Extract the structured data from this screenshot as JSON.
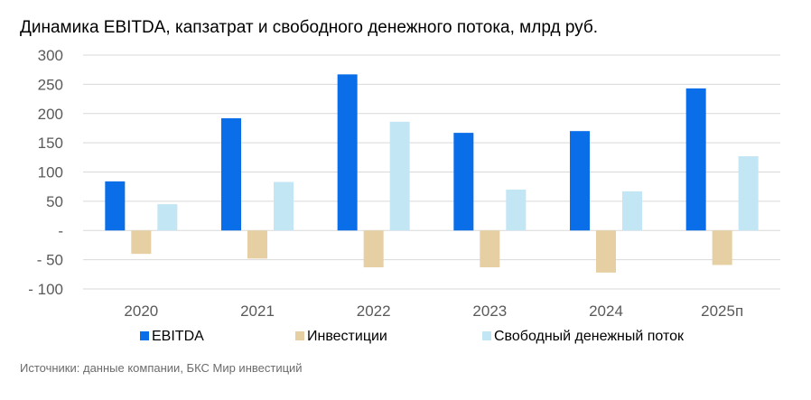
{
  "title": "Динамика EBITDA, капзатрат и свободного денежного потока, млрд руб.",
  "source": "Источники: данные компании, БКС Мир инвестиций",
  "chart_data": {
    "type": "bar",
    "categories": [
      "2020",
      "2021",
      "2022",
      "2023",
      "2024",
      "2025п"
    ],
    "series": [
      {
        "name": "EBITDA",
        "color": "#0a6ee8",
        "values": [
          84,
          192,
          267,
          167,
          170,
          243
        ]
      },
      {
        "name": "Инвестиции",
        "color": "#e6cfa3",
        "values": [
          -40,
          -48,
          -63,
          -63,
          -72,
          -59
        ]
      },
      {
        "name": "Свободный денежный поток",
        "color": "#c3e6f5",
        "values": [
          45,
          83,
          186,
          70,
          67,
          127
        ]
      }
    ],
    "y_ticks": [
      {
        "value": 300,
        "label": "300"
      },
      {
        "value": 250,
        "label": "250"
      },
      {
        "value": 200,
        "label": "200"
      },
      {
        "value": 150,
        "label": "150"
      },
      {
        "value": 100,
        "label": "100"
      },
      {
        "value": 50,
        "label": "50"
      },
      {
        "value": 0,
        "label": "-"
      },
      {
        "value": -50,
        "label": "- 50"
      },
      {
        "value": -100,
        "label": "- 100"
      }
    ],
    "ylim": [
      -100,
      300
    ],
    "grid": true,
    "legend_position": "bottom"
  }
}
